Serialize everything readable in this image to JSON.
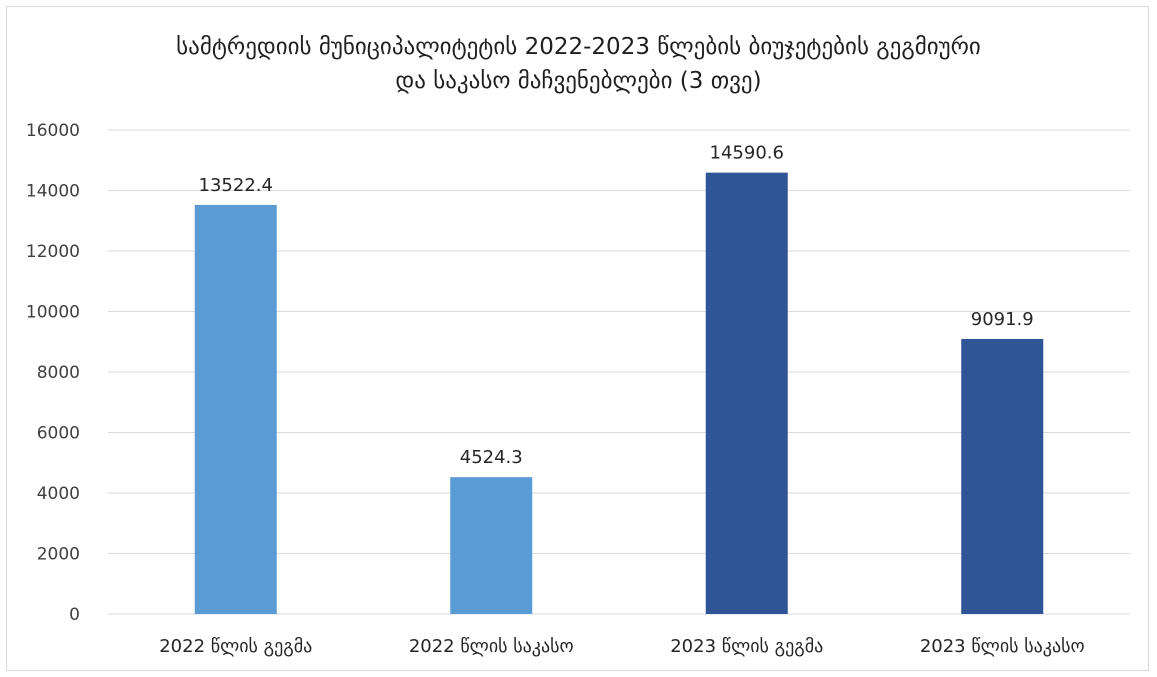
{
  "chart_data": {
    "type": "bar",
    "title_lines": [
      "სამტრედიის მუნიციპალიტეტის 2022-2023 წლების ბიუჯეტების გეგმიური",
      "და  საკასო მაჩვენებლები (3 თვე)"
    ],
    "categories": [
      "2022 წლის გეგმა",
      "2022 წლის საკასო",
      "2023 წლის გეგმა",
      "2023 წლის საკასო"
    ],
    "values": [
      13522.4,
      4524.3,
      14590.6,
      9091.9
    ],
    "data_labels": [
      "13522.4",
      "4524.3",
      "14590.6",
      "9091.9"
    ],
    "bar_colors": [
      "#5b9bd5",
      "#5b9bd5",
      "#2f5597",
      "#2f5597"
    ],
    "ylim": [
      0,
      16000
    ],
    "yticks": [
      0,
      2000,
      4000,
      6000,
      8000,
      10000,
      12000,
      14000,
      16000
    ],
    "grid": true,
    "xlabel": "",
    "ylabel": ""
  }
}
